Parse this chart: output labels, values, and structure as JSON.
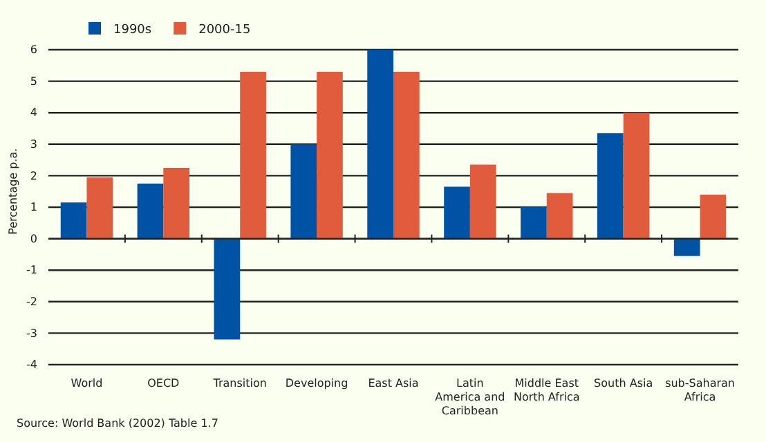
{
  "chart_data": {
    "type": "bar",
    "categories": [
      "World",
      "OECD",
      "Transition",
      "Developing",
      "East Asia",
      "Latin America and Caribbean",
      "Middle East North Africa",
      "South Asia",
      "sub-Saharan Africa"
    ],
    "series": [
      {
        "name": "1990s",
        "color": "#0053a4",
        "values": [
          1.15,
          1.75,
          -3.2,
          3.0,
          6.0,
          1.65,
          1.0,
          3.35,
          -0.55
        ]
      },
      {
        "name": "2000-15",
        "color": "#e05c3c",
        "values": [
          1.95,
          2.25,
          5.3,
          5.3,
          5.3,
          2.35,
          1.45,
          4.0,
          1.4
        ]
      }
    ],
    "ylabel": "Percentage p.a.",
    "ylim": [
      -4,
      6
    ],
    "yticks": [
      -4,
      -3,
      -2,
      -1,
      0,
      1,
      2,
      3,
      4,
      5,
      6
    ],
    "grid": "y",
    "legend": "top left",
    "annotations": [
      "Source: World Bank (2002) Table 1.7"
    ]
  }
}
